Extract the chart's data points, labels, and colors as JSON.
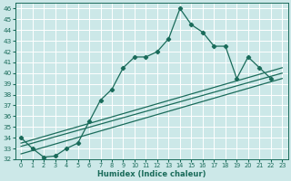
{
  "xlabel": "Humidex (Indice chaleur)",
  "ylabel": "",
  "xlim": [
    -0.5,
    23.5
  ],
  "ylim": [
    32,
    46.5
  ],
  "yticks": [
    32,
    33,
    34,
    35,
    36,
    37,
    38,
    39,
    40,
    41,
    42,
    43,
    44,
    45,
    46
  ],
  "xticks": [
    0,
    1,
    2,
    3,
    4,
    5,
    6,
    7,
    8,
    9,
    10,
    11,
    12,
    13,
    14,
    15,
    16,
    17,
    18,
    19,
    20,
    21,
    22,
    23
  ],
  "bg_color": "#cce8e8",
  "line_color": "#1a6b5a",
  "grid_color": "#ffffff",
  "main_curve": {
    "x": [
      0,
      1,
      2,
      3,
      4,
      5,
      6,
      7,
      8,
      9,
      10,
      11,
      12,
      13,
      14,
      15,
      16,
      17,
      18,
      19,
      20,
      21,
      22
    ],
    "y": [
      34.0,
      33.0,
      32.2,
      32.3,
      33.0,
      33.5,
      35.5,
      37.5,
      38.5,
      40.5,
      41.5,
      41.5,
      42.0,
      43.2,
      46.0,
      44.5,
      43.8,
      42.5,
      42.5,
      39.5,
      41.5,
      40.5,
      39.5
    ]
  },
  "straight_lines": [
    {
      "x": [
        0,
        23
      ],
      "y": [
        32.5,
        39.5
      ]
    },
    {
      "x": [
        0,
        23
      ],
      "y": [
        33.2,
        40.0
      ]
    },
    {
      "x": [
        0,
        23
      ],
      "y": [
        33.5,
        40.5
      ]
    }
  ]
}
